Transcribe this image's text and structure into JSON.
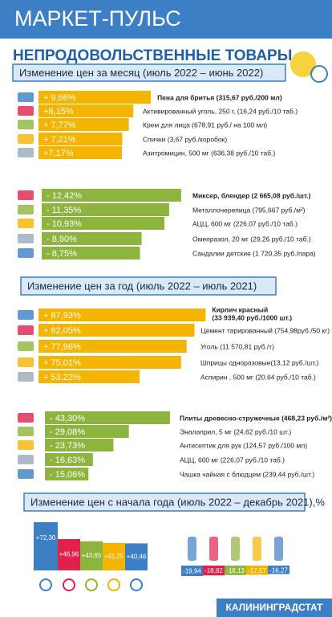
{
  "header": {
    "title": "МАРКЕТ-ПУЛЬС"
  },
  "subtitle": "НЕПРОДОВОЛЬСТВЕННЫЕ ТОВАРЫ",
  "sections": [
    {
      "title": "Изменение цен за месяц (июль 2022 – июнь 2022)",
      "groups": [
        {
          "color": "#f5b400",
          "items": [
            {
              "value": 9.66,
              "label": "+ 9,66%",
              "text": [
                "Пена для бритья (315,67 руб./200 мл)"
              ]
            },
            {
              "value": 8.15,
              "label": "+8,15%",
              "text": [
                "Активированный уголь, 250 г, (16,24 руб./10 таб.)"
              ]
            },
            {
              "value": 7.77,
              "label": "+ 7,77%",
              "text": [
                "Крем для лица (678,91 руб./ на 100 мл)"
              ]
            },
            {
              "value": 7.21,
              "label": "+ 7,21%",
              "text": [
                "Спички (3,67 руб./коробок)"
              ]
            },
            {
              "value": 7.17,
              "label": "+7,17%",
              "text": [
                "Азитромицин, 500 мг (636,38 руб./10 таб.)"
              ]
            }
          ]
        },
        {
          "color": "#8db43c",
          "items": [
            {
              "value": -12.42,
              "label": "- 12,42%",
              "text": [
                "Миксер, блендер (2 665,08 руб./шт.)"
              ]
            },
            {
              "value": -11.35,
              "label": "- 11,35%",
              "text": [
                "Металлочерепица (795,667 руб./м²)"
              ]
            },
            {
              "value": -10.93,
              "label": "- 10,93%",
              "text": [
                "АЦЦ, 600 мг (226,07 руб./10 таб.)"
              ]
            },
            {
              "value": -8.9,
              "label": "- 8,90%",
              "text": [
                "Омепразол, 20 мг (29,26 руб./10 таб.)"
              ]
            },
            {
              "value": -8.75,
              "label": "- 8,75%",
              "text": [
                "Сандалии детские (1 720,35 руб./пара)"
              ]
            }
          ]
        }
      ]
    },
    {
      "title": "Изменение цен за год (июль 2022 – июль 2021)",
      "groups": [
        {
          "color": "#f5b400",
          "items": [
            {
              "value": 87.93,
              "label": "+ 87,93%",
              "text": [
                "Кирпич красный",
                "(33 939,40 руб./1000 шт.)"
              ]
            },
            {
              "value": 82.05,
              "label": "+ 82,05%",
              "text": [
                "Цемент тарированный (754,98руб./50 кг)"
              ]
            },
            {
              "value": 77.96,
              "label": "+ 77,96%",
              "text": [
                "Уголь (11 570,81 руб./т)"
              ]
            },
            {
              "value": 75.01,
              "label": "+ 75,01%",
              "text": [
                "Шприцы одноразовые(13,12 руб./шт.)"
              ]
            },
            {
              "value": 53.22,
              "label": "+ 53,22%",
              "text": [
                "Аспирин , 500 мг (20,64 руб./10 таб.)"
              ]
            }
          ]
        },
        {
          "color": "#8db43c",
          "items": [
            {
              "value": -43.3,
              "label": "- 43,30%",
              "text": [
                "Плиты древесно-стружечные (468,23 руб./м²)"
              ]
            },
            {
              "value": -29.08,
              "label": "- 29,08%",
              "text": [
                "Эналаприл, 5 мг  (24,62 руб./10 шт.)"
              ]
            },
            {
              "value": -23.73,
              "label": "- 23,73%",
              "text": [
                "Антисептик для рук (124,57 руб./100 мл)"
              ]
            },
            {
              "value": -16.63,
              "label": "- 16,63%",
              "text": [
                "АЦЦ, 600 мг (226,07 руб./10 таб.)"
              ]
            },
            {
              "value": -15.06,
              "label": "- 15,06%",
              "text": [
                "Чашка чайная с блюдцем (239,44 руб./шт.)"
              ]
            }
          ]
        }
      ]
    },
    {
      "title": "Изменение цен с начала года (июль 2022 – декабрь 2021),%",
      "columns": {
        "positive": [
          {
            "value": 72.3,
            "label": "+72,30",
            "color": "#3d7fc4"
          },
          {
            "value": 46.96,
            "label": "+46,96",
            "color": "#e2204d"
          },
          {
            "value": 43.65,
            "label": "+43,65",
            "color": "#8db43c"
          },
          {
            "value": 41.25,
            "label": "+41,25",
            "color": "#f5b400"
          },
          {
            "value": 40.46,
            "label": "+40,46",
            "color": "#3d7fc4"
          }
        ],
        "negative": [
          {
            "value": -19.94,
            "label": "-19,94",
            "color": "#3d7fc4"
          },
          {
            "value": -18.82,
            "label": "-18,82",
            "color": "#e2204d"
          },
          {
            "value": -18.13,
            "label": "-18,13",
            "color": "#8db43c"
          },
          {
            "value": -17.57,
            "label": "-17,57",
            "color": "#f5b400"
          },
          {
            "value": -16.27,
            "label": "-16,27",
            "color": "#3d7fc4"
          }
        ]
      }
    }
  ],
  "footer": "КАЛИНИНГРАДСТАТ"
}
